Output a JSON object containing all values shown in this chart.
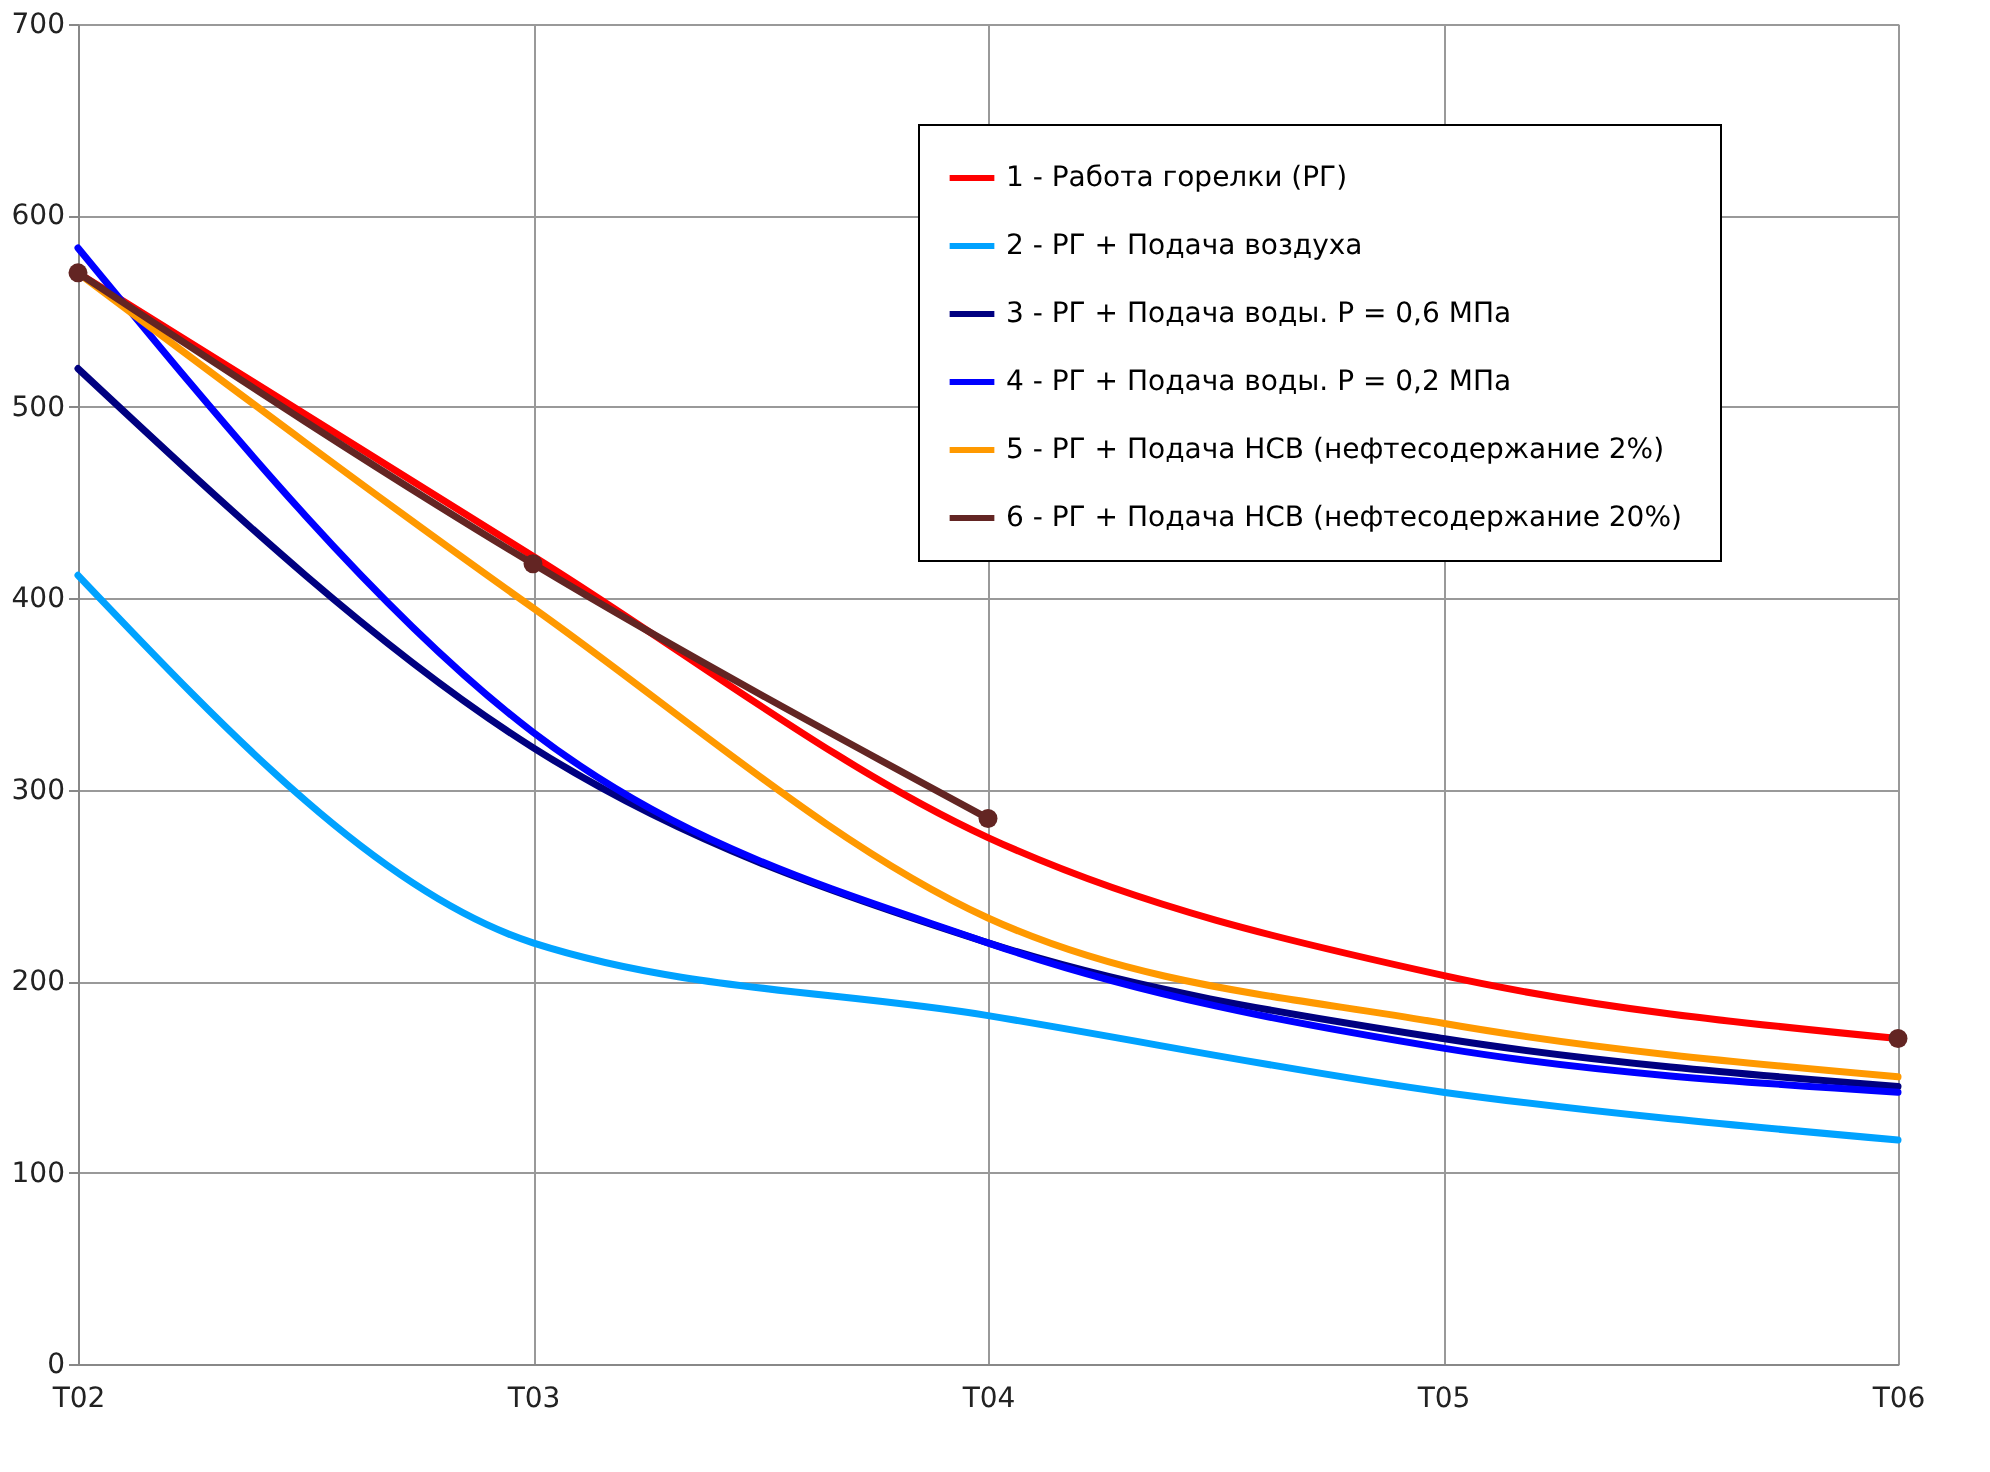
{
  "chart_data": {
    "type": "line",
    "categories": [
      "T02",
      "T03",
      "T04",
      "T05",
      "T06"
    ],
    "ylim": [
      0,
      700
    ],
    "yticks": [
      0,
      100,
      200,
      300,
      400,
      500,
      600,
      700
    ],
    "grid": true,
    "legend": "top right",
    "line_style": "solid",
    "series": [
      {
        "name": "1 -  Работа горелки (РГ)",
        "color": "#ff0000",
        "values": [
          570,
          422,
          275,
          203,
          170
        ]
      },
      {
        "name": "2 - РГ + Подача воздуха",
        "color": "#00a2ff",
        "values": [
          412,
          220,
          182,
          142,
          117
        ]
      },
      {
        "name": "3 - РГ + Подача воды. Р = 0,6 МПа",
        "color": "#000080",
        "values": [
          520,
          322,
          220,
          170,
          145
        ]
      },
      {
        "name": "4 - РГ + Подача воды. Р = 0,2 МПа",
        "color": "#0000ff",
        "values": [
          583,
          330,
          220,
          165,
          142
        ]
      },
      {
        "name": "5 - РГ + Подача НСВ (нефтесодержание  2%)",
        "color": "#ff9900",
        "values": [
          570,
          395,
          233,
          178,
          150
        ]
      },
      {
        "name": "6 - РГ + Подача НСВ (нефтесодержание  20%)",
        "color": "#632523",
        "marker": "circle",
        "values": [
          570,
          418,
          285,
          null,
          170
        ]
      }
    ]
  }
}
